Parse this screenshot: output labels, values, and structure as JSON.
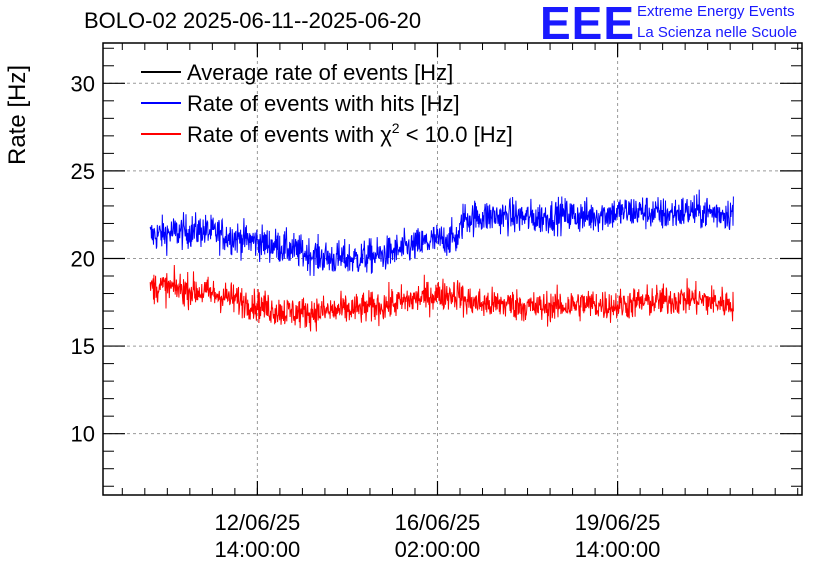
{
  "header": {
    "title": "BOLO-02 2025-06-11--2025-06-20",
    "logo": "EEE",
    "logo_line1": "Extreme Energy Events",
    "logo_line2": "La Scienza nelle Scuole"
  },
  "colors": {
    "black": "#000000",
    "blue": "#0000ff",
    "red": "#ff0000",
    "logo": "#1a1aff",
    "grid": "#9a9a9a"
  },
  "chart_data": {
    "type": "line",
    "title": "BOLO-02 2025-06-11--2025-06-20",
    "ylabel": "Rate [Hz]",
    "xlabel": "",
    "ylim": [
      6.5,
      32.3
    ],
    "yticks": [
      10,
      15,
      20,
      25,
      30
    ],
    "ytick_labels": [
      "10",
      "15",
      "20",
      "25",
      "30"
    ],
    "xlim": [
      "2025-06-09 14:00",
      "2025-06-23 04:00"
    ],
    "xticks": [
      "2025-06-12 14:00",
      "2025-06-16 02:00",
      "2025-06-19 14:00"
    ],
    "xtick_labels": [
      {
        "date": "12/06/25",
        "time": "14:00:00"
      },
      {
        "date": "16/06/25",
        "time": "02:00:00"
      },
      {
        "date": "19/06/25",
        "time": "14:00:00"
      }
    ],
    "grid": true,
    "legend_position": "top-left",
    "legend": [
      {
        "label": "Average rate of events [Hz]",
        "color": "#000000"
      },
      {
        "label": "Rate of events with hits [Hz]",
        "color": "#0000ff"
      },
      {
        "label_prefix": "Rate of events with ",
        "label_symbol": "χ",
        "label_sup": "2",
        "label_suffix": " < 10.0 [Hz]",
        "color": "#ff0000"
      }
    ],
    "series": [
      {
        "name": "Rate of events with hits [Hz]",
        "color": "#0000ff",
        "x": [
          "2025-06-10 12:00",
          "2025-06-11 00:00",
          "2025-06-11 12:00",
          "2025-06-12 00:00",
          "2025-06-12 12:00",
          "2025-06-13 00:00",
          "2025-06-13 12:00",
          "2025-06-14 00:00",
          "2025-06-14 12:00",
          "2025-06-15 00:00",
          "2025-06-15 12:00",
          "2025-06-16 00:00",
          "2025-06-16 12:00",
          "2025-06-16 14:00",
          "2025-06-17 00:00",
          "2025-06-17 12:00",
          "2025-06-18 00:00",
          "2025-06-18 12:00",
          "2025-06-19 00:00",
          "2025-06-19 12:00",
          "2025-06-20 00:00",
          "2025-06-20 12:00",
          "2025-06-21 00:00",
          "2025-06-21 12:00",
          "2025-06-21 20:00"
        ],
        "y": [
          21.3,
          21.5,
          21.6,
          21.3,
          21.0,
          20.7,
          20.3,
          20.0,
          20.0,
          20.2,
          20.6,
          21.0,
          21.2,
          22.3,
          22.4,
          22.4,
          22.3,
          22.5,
          22.4,
          22.6,
          22.7,
          22.5,
          22.7,
          22.6,
          22.6
        ],
        "noise": 0.7
      },
      {
        "name": "Rate of events with χ2 < 10.0 [Hz]",
        "color": "#ff0000",
        "x": [
          "2025-06-10 12:00",
          "2025-06-11 00:00",
          "2025-06-11 12:00",
          "2025-06-12 00:00",
          "2025-06-12 12:00",
          "2025-06-13 00:00",
          "2025-06-13 12:00",
          "2025-06-14 00:00",
          "2025-06-14 12:00",
          "2025-06-15 00:00",
          "2025-06-15 12:00",
          "2025-06-16 00:00",
          "2025-06-16 12:00",
          "2025-06-16 14:00",
          "2025-06-17 00:00",
          "2025-06-17 12:00",
          "2025-06-18 00:00",
          "2025-06-18 12:00",
          "2025-06-19 00:00",
          "2025-06-19 12:00",
          "2025-06-20 00:00",
          "2025-06-20 12:00",
          "2025-06-21 00:00",
          "2025-06-21 12:00",
          "2025-06-21 20:00"
        ],
        "y": [
          18.4,
          18.3,
          18.1,
          17.8,
          17.4,
          17.0,
          16.9,
          17.0,
          17.1,
          17.3,
          17.6,
          17.9,
          18.0,
          17.6,
          17.4,
          17.4,
          17.2,
          17.3,
          17.4,
          17.3,
          17.5,
          17.6,
          17.7,
          17.5,
          17.4
        ],
        "noise": 0.65
      }
    ]
  }
}
